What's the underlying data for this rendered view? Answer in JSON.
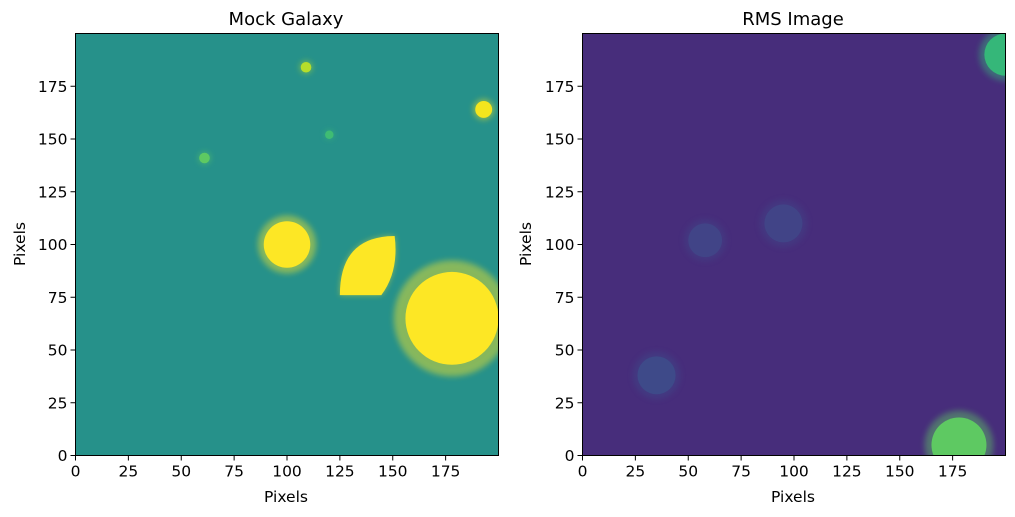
{
  "chart_data": [
    {
      "type": "heatmap",
      "title": "Mock Galaxy",
      "xlabel": "Pixels",
      "ylabel": "Pixels",
      "xlim": [
        0,
        200
      ],
      "ylim": [
        0,
        200
      ],
      "xticks": [
        0,
        25,
        50,
        75,
        100,
        125,
        150,
        175
      ],
      "yticks": [
        0,
        25,
        50,
        75,
        100,
        125,
        150,
        175
      ],
      "colormap": "viridis",
      "background": "#26918a",
      "sources": [
        {
          "shape": "circle",
          "x": 100,
          "y": 100,
          "r": 11,
          "color": "#fde725"
        },
        {
          "shape": "lozenge",
          "x": 139,
          "y": 90,
          "r": 14,
          "color": "#fde725"
        },
        {
          "shape": "circle",
          "x": 178,
          "y": 65,
          "r": 22,
          "color": "#fde725"
        },
        {
          "shape": "circle",
          "x": 193,
          "y": 164,
          "r": 4,
          "color": "#f4e51e"
        },
        {
          "shape": "circle",
          "x": 109,
          "y": 184,
          "r": 2.5,
          "color": "#b5de2b"
        },
        {
          "shape": "circle",
          "x": 61,
          "y": 141,
          "r": 2.5,
          "color": "#5ec962"
        },
        {
          "shape": "circle",
          "x": 120,
          "y": 152,
          "r": 2,
          "color": "#3fbc73"
        }
      ]
    },
    {
      "type": "heatmap",
      "title": "RMS Image",
      "xlabel": "Pixels",
      "ylabel": "Pixels",
      "xlim": [
        0,
        200
      ],
      "ylim": [
        0,
        200
      ],
      "xticks": [
        0,
        25,
        50,
        75,
        100,
        125,
        150,
        175
      ],
      "yticks": [
        0,
        25,
        50,
        75,
        100,
        125,
        150,
        175
      ],
      "colormap": "viridis",
      "background": "#472d7b",
      "sources": [
        {
          "shape": "circle",
          "x": 178,
          "y": 5,
          "r": 13,
          "color": "#5ec962"
        },
        {
          "shape": "circle",
          "x": 200,
          "y": 190,
          "r": 10,
          "color": "#35b779"
        },
        {
          "shape": "circle",
          "x": 35,
          "y": 38,
          "r": 9,
          "color": "#3e4a89"
        },
        {
          "shape": "circle",
          "x": 58,
          "y": 102,
          "r": 8,
          "color": "#414487"
        },
        {
          "shape": "circle",
          "x": 95,
          "y": 110,
          "r": 9,
          "color": "#414487"
        }
      ]
    }
  ]
}
